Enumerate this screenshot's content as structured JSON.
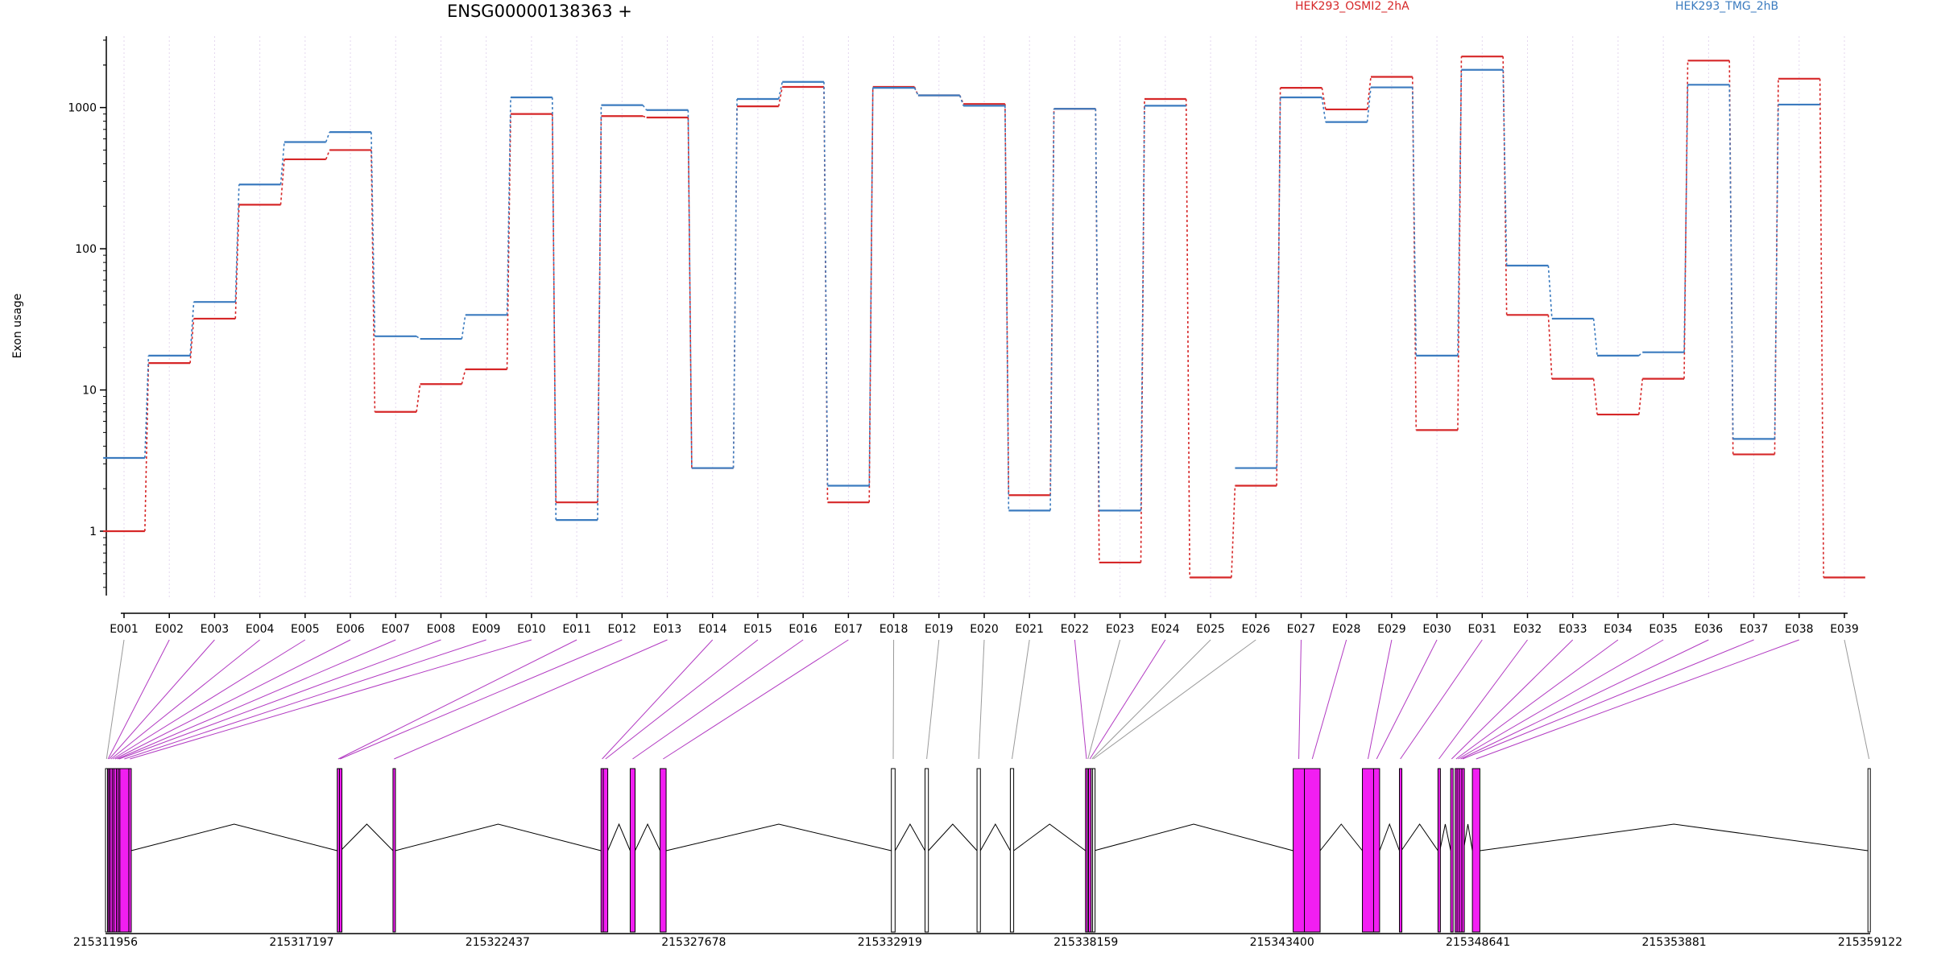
{
  "title": "ENSG00000138363 +",
  "legend": [
    {
      "name": "HEK293_OSMI2_2hA",
      "color": "#d62728"
    },
    {
      "name": "HEK293_TMG_2hB",
      "color": "#3b7bbf"
    }
  ],
  "chart_data": {
    "type": "line",
    "title": "ENSG00000138363 +",
    "xlabel": "",
    "ylabel": "Exon usage",
    "yscale": "log",
    "ylim": [
      0.35,
      3200
    ],
    "yticks": [
      1,
      10,
      100,
      1000
    ],
    "ytick_labels": [
      "1",
      "10",
      "100",
      "1000"
    ],
    "legend_placement": "top",
    "grid": "vertical dotted lines at exon positions",
    "categories": [
      "E001",
      "E002",
      "E003",
      "E004",
      "E005",
      "E006",
      "E007",
      "E008",
      "E009",
      "E010",
      "E011",
      "E012",
      "E013",
      "E014",
      "E015",
      "E016",
      "E017",
      "E018",
      "E019",
      "E020",
      "E021",
      "E022",
      "E023",
      "E024",
      "E025",
      "E026",
      "E027",
      "E028",
      "E029",
      "E030",
      "E031",
      "E032",
      "E033",
      "E034",
      "E035",
      "E036",
      "E037",
      "E038",
      "E039"
    ],
    "series": [
      {
        "name": "HEK293_OSMI2_2hA",
        "color": "#d62728",
        "values": [
          1.0,
          15.5,
          32,
          205,
          430,
          500,
          7,
          11,
          14,
          900,
          1.6,
          870,
          850,
          2.8,
          1020,
          1400,
          1.6,
          1400,
          1220,
          1060,
          1.8,
          980,
          0.6,
          1150,
          0.47,
          2.1,
          1380,
          970,
          1650,
          5.2,
          2300,
          34,
          12,
          6.7,
          12,
          2150,
          3.5,
          1600,
          0.47
        ]
      },
      {
        "name": "HEK293_TMG_2hB",
        "color": "#3b7bbf",
        "values": [
          3.3,
          17.5,
          42,
          285,
          570,
          670,
          24,
          23,
          34,
          1180,
          1.2,
          1040,
          960,
          2.8,
          1150,
          1520,
          2.1,
          1380,
          1220,
          1030,
          1.4,
          980,
          1.4,
          1030,
          null,
          2.8,
          1180,
          790,
          1390,
          17.5,
          1850,
          76,
          32,
          17.5,
          18.5,
          1450,
          4.5,
          1050,
          null
        ]
      }
    ],
    "genomic_axis": {
      "tick_labels": [
        "215311956",
        "215317197",
        "215322437",
        "215327678",
        "215332919",
        "215338159",
        "215343400",
        "215348641",
        "215353881",
        "215359122"
      ],
      "start": 215311956,
      "end": 215359122
    },
    "exons": [
      {
        "id": "E001",
        "start": 215311956,
        "end": 215312010,
        "highlighted": false
      },
      {
        "id": "E002",
        "start": 215312010,
        "end": 215312040,
        "highlighted": true
      },
      {
        "id": "E003",
        "start": 215312040,
        "end": 215312075,
        "highlighted": true
      },
      {
        "id": "E004",
        "start": 215312075,
        "end": 215312135,
        "highlighted": true
      },
      {
        "id": "E005",
        "start": 215312135,
        "end": 215312180,
        "highlighted": true
      },
      {
        "id": "E006",
        "start": 215312180,
        "end": 215312250,
        "highlighted": true
      },
      {
        "id": "E007",
        "start": 215312250,
        "end": 215312300,
        "highlighted": true
      },
      {
        "id": "E008",
        "start": 215312300,
        "end": 215312340,
        "highlighted": true
      },
      {
        "id": "E009",
        "start": 215312340,
        "end": 215312580,
        "highlighted": true
      },
      {
        "id": "E010",
        "start": 215312580,
        "end": 215312640,
        "highlighted": true
      },
      {
        "id": "E011",
        "start": 215318150,
        "end": 215318210,
        "highlighted": true
      },
      {
        "id": "E012",
        "start": 215318210,
        "end": 215318240,
        "highlighted": true
      },
      {
        "id": "E013",
        "start": 215319640,
        "end": 215319700,
        "highlighted": true
      },
      {
        "id": "E014",
        "start": 215325200,
        "end": 215325260,
        "highlighted": true
      },
      {
        "id": "E015",
        "start": 215325260,
        "end": 215325380,
        "highlighted": true
      },
      {
        "id": "E016",
        "start": 215325980,
        "end": 215326110,
        "highlighted": true
      },
      {
        "id": "E017",
        "start": 215326780,
        "end": 215326940,
        "highlighted": true
      },
      {
        "id": "E018",
        "start": 215332960,
        "end": 215333060,
        "highlighted": false
      },
      {
        "id": "E019",
        "start": 215333860,
        "end": 215333950,
        "highlighted": false
      },
      {
        "id": "E020",
        "start": 215335250,
        "end": 215335340,
        "highlighted": false
      },
      {
        "id": "E021",
        "start": 215336140,
        "end": 215336230,
        "highlighted": false
      },
      {
        "id": "E022",
        "start": 215338150,
        "end": 215338200,
        "highlighted": true
      },
      {
        "id": "E023",
        "start": 215338200,
        "end": 215338230,
        "highlighted": false
      },
      {
        "id": "E024",
        "start": 215338230,
        "end": 215338300,
        "highlighted": true
      },
      {
        "id": "E025",
        "start": 215338300,
        "end": 215338340,
        "highlighted": false
      },
      {
        "id": "E026",
        "start": 215338340,
        "end": 215338380,
        "highlighted": false
      },
      {
        "id": "E027",
        "start": 215343700,
        "end": 215344000,
        "highlighted": true
      },
      {
        "id": "E028",
        "start": 215344000,
        "end": 215344420,
        "highlighted": true
      },
      {
        "id": "E029",
        "start": 215345550,
        "end": 215345850,
        "highlighted": true
      },
      {
        "id": "E030",
        "start": 215345850,
        "end": 215346010,
        "highlighted": true
      },
      {
        "id": "E031",
        "start": 215346540,
        "end": 215346590,
        "highlighted": true
      },
      {
        "id": "E032",
        "start": 215347570,
        "end": 215347620,
        "highlighted": true
      },
      {
        "id": "E033",
        "start": 215347910,
        "end": 215347960,
        "highlighted": true
      },
      {
        "id": "E034",
        "start": 215348030,
        "end": 215348080,
        "highlighted": true
      },
      {
        "id": "E035",
        "start": 215348080,
        "end": 215348140,
        "highlighted": true
      },
      {
        "id": "E036",
        "start": 215348140,
        "end": 215348210,
        "highlighted": true
      },
      {
        "id": "E037",
        "start": 215348210,
        "end": 215348250,
        "highlighted": true
      },
      {
        "id": "E038",
        "start": 215348490,
        "end": 215348690,
        "highlighted": true
      },
      {
        "id": "E039",
        "start": 215359062,
        "end": 215359122,
        "highlighted": false
      }
    ],
    "colors": {
      "highlight_exon": "#f21ef2",
      "plain_exon": "#ffffff",
      "axis": "#000000",
      "grid": "#e3d6ee"
    }
  }
}
